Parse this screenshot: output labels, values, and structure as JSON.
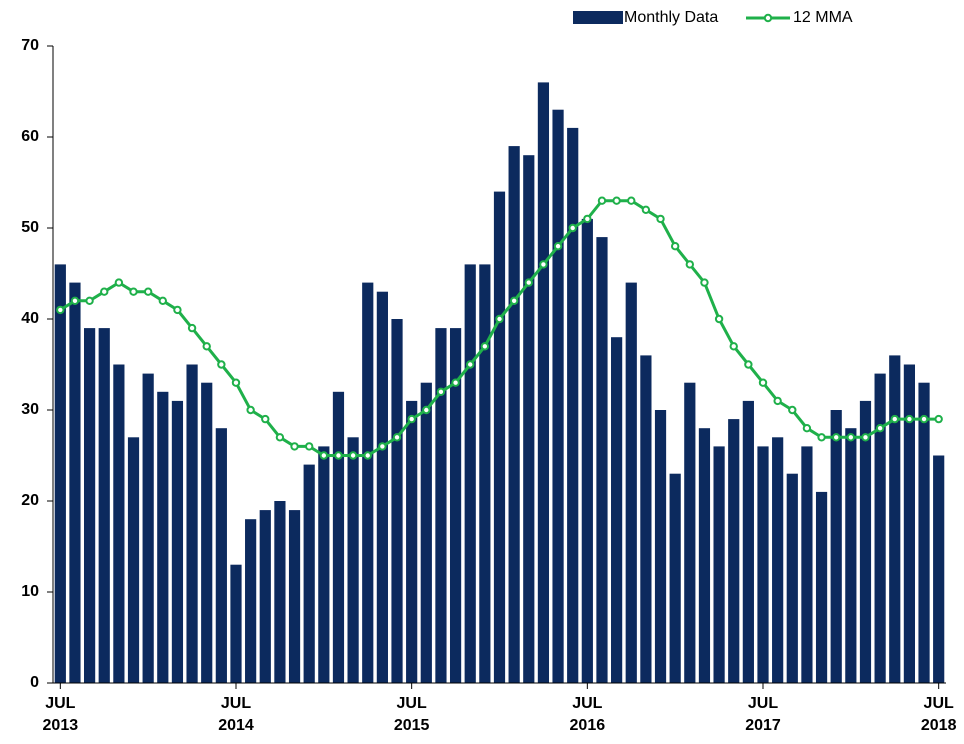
{
  "chart_data": {
    "type": "bar_line",
    "categories": [
      "JUL\n2013",
      null,
      null,
      null,
      null,
      null,
      null,
      null,
      null,
      null,
      null,
      null,
      "JUL\n2014",
      null,
      null,
      null,
      null,
      null,
      null,
      null,
      null,
      null,
      null,
      null,
      "JUL\n2015",
      null,
      null,
      null,
      null,
      null,
      null,
      null,
      null,
      null,
      null,
      null,
      "JUL\n2016",
      null,
      null,
      null,
      null,
      null,
      null,
      null,
      null,
      null,
      null,
      null,
      "JUL\n2017",
      null,
      null,
      null,
      null,
      null,
      null,
      null,
      null,
      null,
      null,
      null,
      "JUL\n2018"
    ],
    "series": [
      {
        "name": "Monthly Data",
        "type": "bar",
        "color": "#0c2a5e",
        "values": [
          46,
          44,
          39,
          39,
          35,
          27,
          34,
          32,
          31,
          35,
          33,
          28,
          13,
          18,
          19,
          20,
          19,
          24,
          26,
          32,
          27,
          44,
          43,
          40,
          31,
          33,
          39,
          39,
          46,
          46,
          54,
          59,
          58,
          66,
          63,
          61,
          51,
          49,
          38,
          44,
          36,
          30,
          23,
          33,
          28,
          26,
          29,
          31,
          26,
          27,
          23,
          26,
          21,
          30,
          28,
          31,
          34,
          36,
          35,
          33,
          25
        ]
      },
      {
        "name": "12 MMA",
        "type": "line",
        "color": "#1fb04a",
        "values": [
          41,
          42,
          42,
          43,
          44,
          43,
          43,
          42,
          41,
          39,
          37,
          35,
          33,
          30,
          29,
          27,
          26,
          26,
          25,
          25,
          25,
          25,
          26,
          27,
          29,
          30,
          32,
          33,
          35,
          37,
          40,
          42,
          44,
          46,
          48,
          50,
          51,
          53,
          53,
          53,
          52,
          51,
          48,
          46,
          44,
          40,
          37,
          35,
          33,
          31,
          30,
          28,
          27,
          27,
          27,
          27,
          28,
          29,
          29,
          29,
          29
        ]
      }
    ],
    "ylim": [
      0,
      70
    ],
    "yticks": [
      0,
      10,
      20,
      30,
      40,
      50,
      60,
      70
    ],
    "grid": false,
    "legend": "top-right"
  }
}
